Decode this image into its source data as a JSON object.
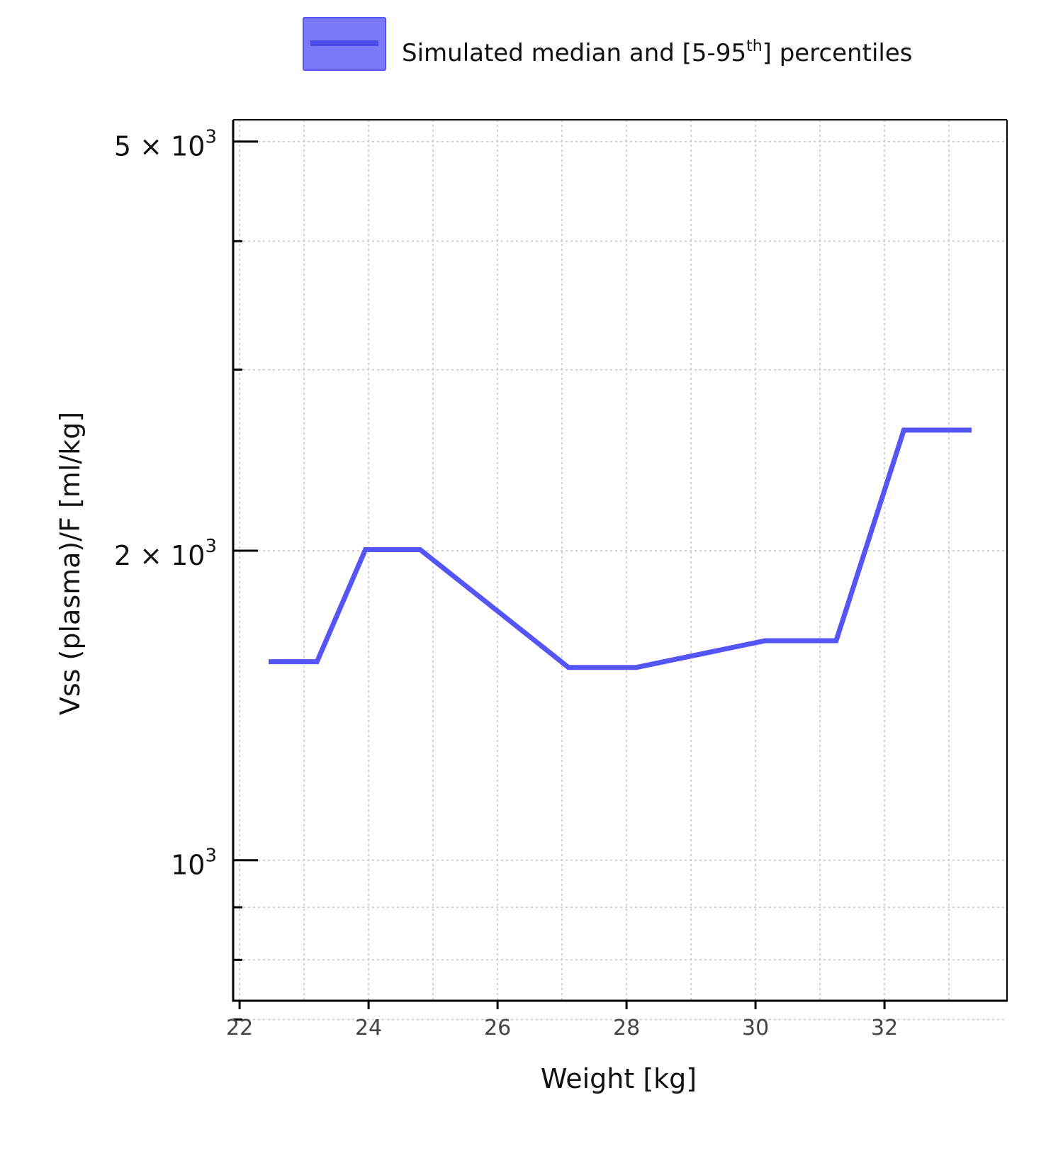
{
  "chart_data": {
    "type": "line",
    "xlabel": "Weight [kg]",
    "ylabel": "Vss (plasma)/F [ml/kg]",
    "y_scale": "log",
    "xlim": [
      21.9,
      33.9
    ],
    "ylim": [
      730,
      5250
    ],
    "x_ticks": [
      22,
      24,
      26,
      28,
      30,
      32
    ],
    "x_tick_labels": [
      "22",
      "24",
      "26",
      "28",
      "30",
      "32"
    ],
    "y_major_ticks": [
      {
        "value": 5000,
        "mantissa": "5",
        "exp": "3"
      },
      {
        "value": 2000,
        "mantissa": "2",
        "exp": "3"
      },
      {
        "value": 1000,
        "mantissa": "",
        "exp": "3"
      }
    ],
    "y_minor_ticks": [
      4000,
      3000,
      900,
      800,
      700
    ],
    "grid": true,
    "legend": {
      "placement": "top",
      "label_main": "Simulated median and [5-95",
      "label_sup": "th",
      "label_end": "] percentiles"
    },
    "series": [
      {
        "name": "Simulated median and [5-95th] percentiles",
        "color": "#5555f5",
        "band_color": "#6b6bf6",
        "x": [
          22.45,
          23.2,
          23.95,
          24.8,
          27.1,
          28.15,
          30.15,
          31.25,
          32.3,
          33.35
        ],
        "y": [
          1560,
          1560,
          2005,
          2005,
          1540,
          1540,
          1635,
          1635,
          2620,
          2620
        ]
      }
    ]
  }
}
